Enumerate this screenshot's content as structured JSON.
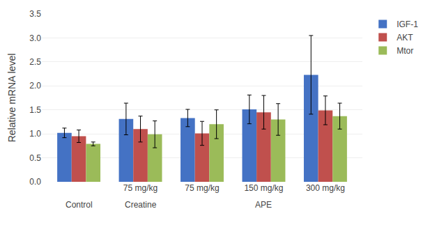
{
  "chart_data": {
    "type": "bar",
    "ylabel": "Relative mRNA level",
    "categories": [
      [
        "Control",
        null
      ],
      [
        "Creatine",
        "75 mg/kg"
      ],
      [
        "APE",
        "75 mg/kg"
      ],
      [
        "APE",
        "150 mg/kg"
      ],
      [
        "APE",
        "300 mg/kg"
      ]
    ],
    "series": [
      {
        "name": "IGF-1",
        "color": "#4472C4",
        "values": [
          1.02,
          1.31,
          1.33,
          1.51,
          2.23
        ],
        "errors": [
          0.1,
          0.33,
          0.18,
          0.3,
          0.82
        ]
      },
      {
        "name": "AKT",
        "color": "#C0504D",
        "values": [
          0.95,
          1.1,
          1.01,
          1.45,
          1.49
        ],
        "errors": [
          0.13,
          0.27,
          0.25,
          0.35,
          0.3
        ]
      },
      {
        "name": "Mtor",
        "color": "#9BBB59",
        "values": [
          0.79,
          0.99,
          1.2,
          1.3,
          1.37
        ],
        "errors": [
          0.04,
          0.28,
          0.3,
          0.33,
          0.27
        ]
      }
    ],
    "ylim": [
      0,
      3.5
    ],
    "yticks": [
      {
        "value": 0,
        "label": "0.0"
      },
      0.5,
      {
        "value": 1.0,
        "label": "1.0"
      },
      1.5,
      {
        "value": 2.0,
        "label": "2.0"
      },
      2.5,
      {
        "value": 3.0,
        "label": "3.0"
      },
      3.5
    ],
    "grid": true,
    "legend": "upper right"
  }
}
